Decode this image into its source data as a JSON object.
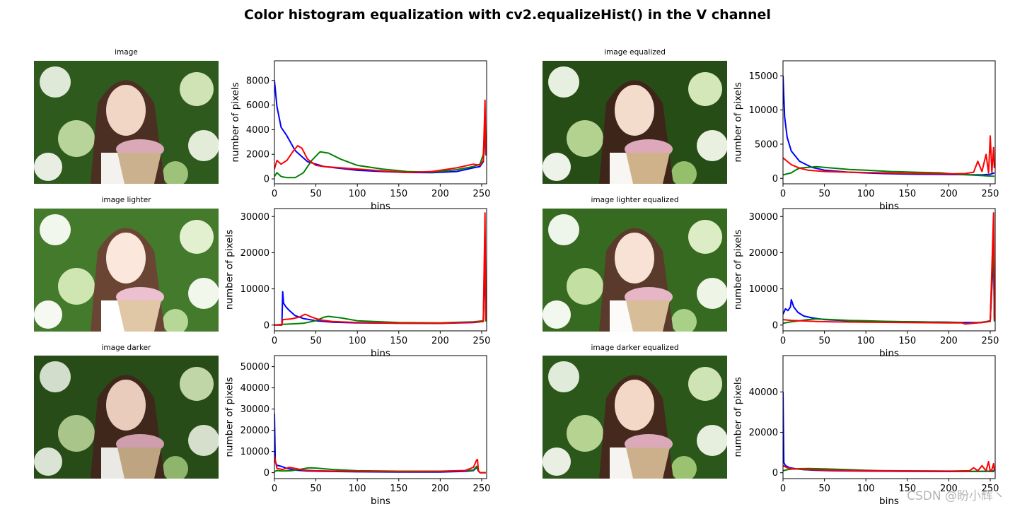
{
  "suptitle": "Color histogram equalization with cv2.equalizeHist() in the V channel",
  "watermark": "CSDN @盼小辉丶",
  "image_titles": [
    "image",
    "image equalized",
    "image lighter",
    "image lighter equalized",
    "image darker",
    "image darker equalized"
  ],
  "series_colors": {
    "blue": "#0000ff",
    "green": "#008000",
    "red": "#ff0000"
  },
  "chart_data": [
    {
      "type": "line",
      "xlabel": "bins",
      "ylabel": "number of pixels",
      "xlim": [
        0,
        256
      ],
      "ylim": [
        -400,
        9600
      ],
      "xticks": [
        0,
        50,
        100,
        150,
        200,
        250
      ],
      "yticks": [
        0,
        2000,
        4000,
        6000,
        8000
      ],
      "series": [
        {
          "color": "blue",
          "x": [
            0,
            3,
            8,
            15,
            25,
            40,
            60,
            80,
            100,
            130,
            160,
            190,
            220,
            240,
            248,
            252,
            254,
            255
          ],
          "y": [
            8000,
            5900,
            4200,
            3500,
            2300,
            1400,
            1000,
            850,
            700,
            600,
            520,
            500,
            600,
            900,
            1000,
            1400,
            4000,
            3000
          ]
        },
        {
          "color": "green",
          "x": [
            0,
            3,
            8,
            15,
            25,
            35,
            45,
            55,
            65,
            80,
            100,
            130,
            160,
            190,
            220,
            240,
            248,
            252,
            254,
            255
          ],
          "y": [
            200,
            500,
            200,
            100,
            100,
            500,
            1500,
            2200,
            2100,
            1600,
            1100,
            800,
            600,
            550,
            750,
            1000,
            1200,
            2000,
            4500,
            1900
          ]
        },
        {
          "color": "red",
          "x": [
            0,
            3,
            8,
            15,
            22,
            28,
            33,
            40,
            50,
            60,
            80,
            100,
            130,
            160,
            190,
            220,
            240,
            248,
            252,
            254,
            255
          ],
          "y": [
            800,
            1500,
            1200,
            1500,
            2200,
            2700,
            2500,
            1600,
            1100,
            1000,
            900,
            800,
            650,
            520,
            600,
            900,
            1200,
            1100,
            1500,
            6400,
            2000
          ]
        }
      ]
    },
    {
      "type": "line",
      "xlabel": "bins",
      "ylabel": "number of pixels",
      "xlim": [
        0,
        256
      ],
      "ylim": [
        -800,
        17200
      ],
      "xticks": [
        0,
        50,
        100,
        150,
        200,
        250
      ],
      "yticks": [
        0,
        5000,
        10000,
        15000
      ],
      "series": [
        {
          "color": "blue",
          "x": [
            0,
            2,
            5,
            10,
            20,
            35,
            50,
            80,
            120,
            160,
            200,
            240,
            250,
            255
          ],
          "y": [
            15000,
            9000,
            6000,
            4000,
            2500,
            1600,
            1200,
            900,
            700,
            600,
            550,
            500,
            600,
            800
          ]
        },
        {
          "color": "green",
          "x": [
            0,
            10,
            15,
            20,
            30,
            40,
            50,
            60,
            80,
            100,
            130,
            160,
            190,
            210,
            240,
            255
          ],
          "y": [
            500,
            800,
            1200,
            1500,
            1600,
            1700,
            1600,
            1500,
            1300,
            1200,
            1000,
            900,
            800,
            600,
            400,
            300
          ]
        },
        {
          "color": "red",
          "x": [
            0,
            5,
            10,
            20,
            30,
            50,
            80,
            120,
            160,
            200,
            220,
            230,
            235,
            240,
            245,
            248,
            250,
            252,
            254,
            255
          ],
          "y": [
            3000,
            2500,
            2000,
            1500,
            1200,
            1000,
            900,
            800,
            700,
            650,
            700,
            900,
            2500,
            1000,
            3500,
            800,
            6200,
            900,
            4500,
            1500
          ]
        }
      ]
    },
    {
      "type": "line",
      "xlabel": "bins",
      "ylabel": "number of pixels",
      "xlim": [
        0,
        256
      ],
      "ylim": [
        -1600,
        32200
      ],
      "xticks": [
        0,
        50,
        100,
        150,
        200,
        250
      ],
      "yticks": [
        0,
        10000,
        20000,
        30000
      ],
      "series": [
        {
          "color": "blue",
          "x": [
            0,
            9,
            10,
            11,
            14,
            18,
            25,
            35,
            50,
            70,
            100,
            150,
            200,
            240,
            252,
            254,
            255
          ],
          "y": [
            0,
            0,
            9200,
            6000,
            5000,
            4000,
            2600,
            1800,
            1200,
            800,
            600,
            500,
            450,
            700,
            1000,
            18000,
            2000
          ]
        },
        {
          "color": "green",
          "x": [
            0,
            10,
            20,
            35,
            50,
            60,
            65,
            80,
            100,
            150,
            200,
            240,
            252,
            254,
            255
          ],
          "y": [
            0,
            200,
            300,
            500,
            1200,
            2200,
            2400,
            2000,
            1200,
            700,
            600,
            900,
            1200,
            25000,
            1000
          ]
        },
        {
          "color": "red",
          "x": [
            0,
            9,
            10,
            20,
            30,
            37,
            45,
            55,
            70,
            100,
            150,
            200,
            240,
            252,
            254,
            255
          ],
          "y": [
            0,
            0,
            1500,
            1700,
            2200,
            3000,
            2200,
            1400,
            1000,
            700,
            500,
            500,
            800,
            1000,
            31000,
            1500
          ]
        }
      ]
    },
    {
      "type": "line",
      "xlabel": "bins",
      "ylabel": "number of pixels",
      "xlim": [
        0,
        256
      ],
      "ylim": [
        -1600,
        32200
      ],
      "xticks": [
        0,
        50,
        100,
        150,
        200,
        250
      ],
      "yticks": [
        0,
        10000,
        20000,
        30000
      ],
      "series": [
        {
          "color": "blue",
          "x": [
            0,
            3,
            6,
            9,
            10,
            13,
            18,
            25,
            35,
            50,
            80,
            120,
            160,
            200,
            220,
            240,
            250,
            254,
            255
          ],
          "y": [
            3000,
            4500,
            4000,
            5000,
            7000,
            5000,
            3500,
            2500,
            2000,
            1500,
            1200,
            1000,
            900,
            800,
            700,
            700,
            1200,
            20000,
            2000
          ]
        },
        {
          "color": "green",
          "x": [
            0,
            10,
            20,
            30,
            40,
            50,
            60,
            80,
            100,
            130,
            160,
            190,
            215,
            220,
            240,
            250,
            254,
            255
          ],
          "y": [
            500,
            900,
            1200,
            1500,
            1700,
            1600,
            1500,
            1300,
            1200,
            1000,
            900,
            800,
            700,
            300,
            800,
            1100,
            25000,
            1000
          ]
        },
        {
          "color": "red",
          "x": [
            0,
            10,
            20,
            40,
            60,
            100,
            150,
            200,
            215,
            220,
            240,
            250,
            254,
            255
          ],
          "y": [
            1500,
            1300,
            1200,
            1000,
            900,
            800,
            700,
            600,
            600,
            300,
            700,
            1000,
            31000,
            1500
          ]
        }
      ]
    },
    {
      "type": "line",
      "xlabel": "bins",
      "ylabel": "number of pixels",
      "xlim": [
        0,
        256
      ],
      "ylim": [
        -2800,
        55200
      ],
      "xticks": [
        0,
        50,
        100,
        150,
        200,
        250
      ],
      "yticks": [
        0,
        10000,
        20000,
        30000,
        40000,
        50000
      ],
      "series": [
        {
          "color": "blue",
          "x": [
            0,
            1,
            3,
            8,
            15,
            25,
            40,
            60,
            100,
            150,
            200,
            230,
            240,
            244,
            246,
            248,
            250,
            255
          ],
          "y": [
            28000,
            5000,
            3500,
            3000,
            2000,
            1200,
            800,
            600,
            400,
            300,
            300,
            600,
            1000,
            2500,
            800,
            0,
            0,
            0
          ]
        },
        {
          "color": "green",
          "x": [
            0,
            3,
            10,
            20,
            30,
            40,
            45,
            55,
            70,
            100,
            150,
            200,
            230,
            240,
            244,
            246,
            248,
            250,
            255
          ],
          "y": [
            500,
            1000,
            800,
            900,
            1500,
            2200,
            2300,
            2000,
            1500,
            900,
            700,
            700,
            1000,
            1200,
            3000,
            800,
            0,
            0,
            0
          ]
        },
        {
          "color": "red",
          "x": [
            0,
            3,
            10,
            18,
            25,
            35,
            50,
            80,
            120,
            160,
            200,
            230,
            240,
            244,
            245,
            246,
            248,
            250,
            255
          ],
          "y": [
            8000,
            2000,
            1500,
            2500,
            2000,
            1200,
            900,
            700,
            600,
            500,
            600,
            1000,
            2500,
            6000,
            6200,
            1000,
            0,
            0,
            0
          ]
        }
      ]
    },
    {
      "type": "line",
      "xlabel": "bins",
      "ylabel": "number of pixels",
      "xlim": [
        0,
        256
      ],
      "ylim": [
        -2900,
        58000
      ],
      "xticks": [
        0,
        50,
        100,
        150,
        200,
        250
      ],
      "yticks": [
        0,
        20000,
        40000
      ],
      "series": [
        {
          "color": "blue",
          "x": [
            0,
            1,
            3,
            8,
            15,
            25,
            40,
            60,
            100,
            150,
            200,
            240,
            250,
            255
          ],
          "y": [
            40000,
            5000,
            3500,
            2500,
            2000,
            1500,
            1200,
            1000,
            800,
            700,
            600,
            700,
            800,
            900
          ]
        },
        {
          "color": "green",
          "x": [
            0,
            5,
            10,
            20,
            30,
            40,
            50,
            60,
            80,
            100,
            120,
            150,
            190,
            230,
            255
          ],
          "y": [
            1000,
            1500,
            1800,
            2000,
            2100,
            2000,
            1900,
            1800,
            1500,
            1200,
            1000,
            900,
            800,
            700,
            600
          ]
        },
        {
          "color": "red",
          "x": [
            0,
            5,
            10,
            30,
            60,
            100,
            150,
            200,
            225,
            230,
            235,
            240,
            245,
            248,
            250,
            252,
            254,
            255
          ],
          "y": [
            3500,
            2500,
            2000,
            1500,
            1200,
            1000,
            900,
            800,
            1000,
            2500,
            900,
            3500,
            1000,
            5500,
            800,
            1500,
            4500,
            1000
          ]
        }
      ]
    }
  ]
}
